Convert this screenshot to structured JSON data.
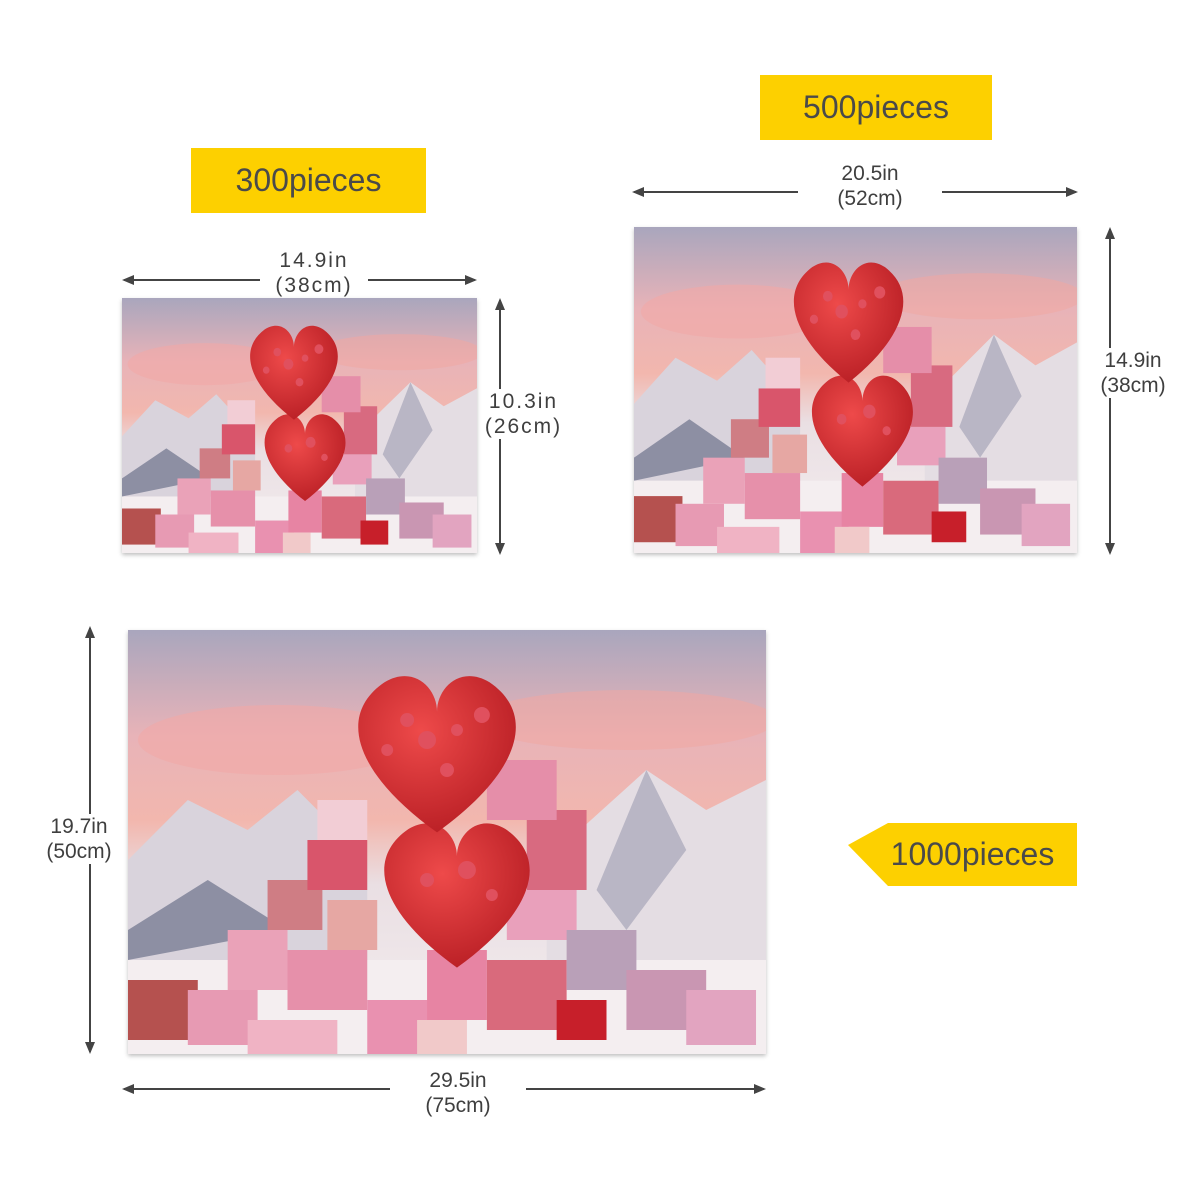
{
  "sizes": [
    {
      "pieces_label": "300pieces",
      "width": "14.9in",
      "width_metric": "(38cm)",
      "height": "10.3in",
      "height_metric": "(26cm)"
    },
    {
      "pieces_label": "500pieces",
      "width": "20.5in",
      "width_metric": "(52cm)",
      "height": "14.9in",
      "height_metric": "(38cm)"
    },
    {
      "pieces_label": "1000pieces",
      "width": "29.5in",
      "width_metric": "(75cm)",
      "height": "19.7in",
      "height_metric": "(50cm)"
    }
  ],
  "colors": {
    "label_background": "#fdd000",
    "label_text": "#4a4a4a",
    "arrow": "#444444"
  }
}
